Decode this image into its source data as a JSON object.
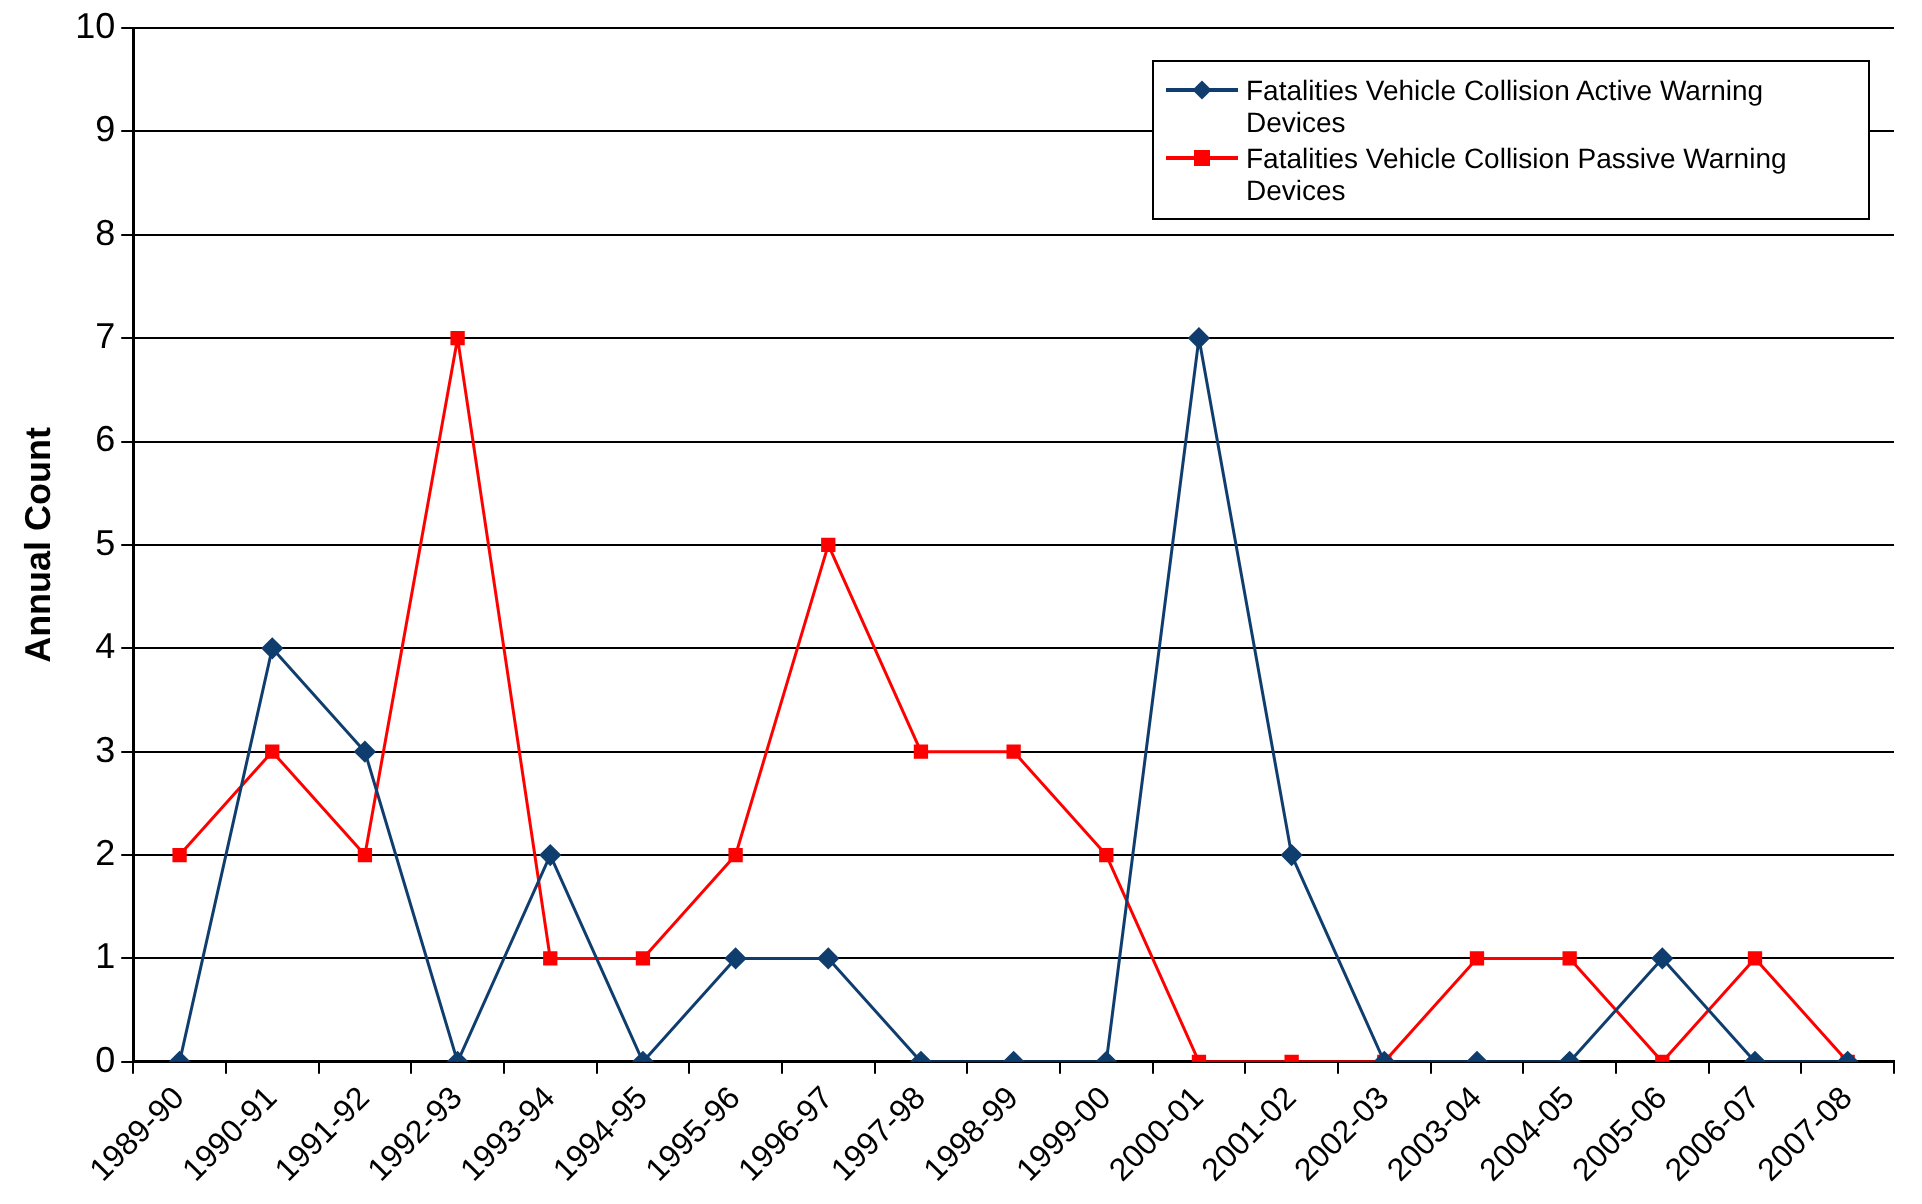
{
  "chart_data": {
    "type": "line",
    "ylabel": "Annual Count",
    "categories": [
      "1989-90",
      "1990-91",
      "1991-92",
      "1992-93",
      "1993-94",
      "1994-95",
      "1995-96",
      "1996-97",
      "1997-98",
      "1998-99",
      "1999-00",
      "2000-01",
      "2001-02",
      "2002-03",
      "2003-04",
      "2004-05",
      "2005-06",
      "2006-07",
      "2007-08"
    ],
    "series": [
      {
        "name": "Fatalities Vehicle Collision Active Warning Devices",
        "color": "#0f3d6e",
        "marker": "diamond",
        "values": [
          0,
          4,
          3,
          0,
          2,
          0,
          1,
          1,
          0,
          0,
          0,
          7,
          2,
          0,
          0,
          0,
          1,
          0,
          0
        ]
      },
      {
        "name": "Fatalities Vehicle Collision Passive Warning Devices",
        "color": "#ff0000",
        "marker": "square",
        "values": [
          2,
          3,
          2,
          7,
          1,
          1,
          2,
          5,
          3,
          3,
          2,
          0,
          0,
          0,
          1,
          1,
          0,
          1,
          0
        ]
      }
    ],
    "ylim": [
      0,
      10
    ],
    "yticks": [
      0,
      1,
      2,
      3,
      4,
      5,
      6,
      7,
      8,
      9,
      10
    ],
    "grid": "y",
    "legend": "top right",
    "line_style": "solid"
  }
}
